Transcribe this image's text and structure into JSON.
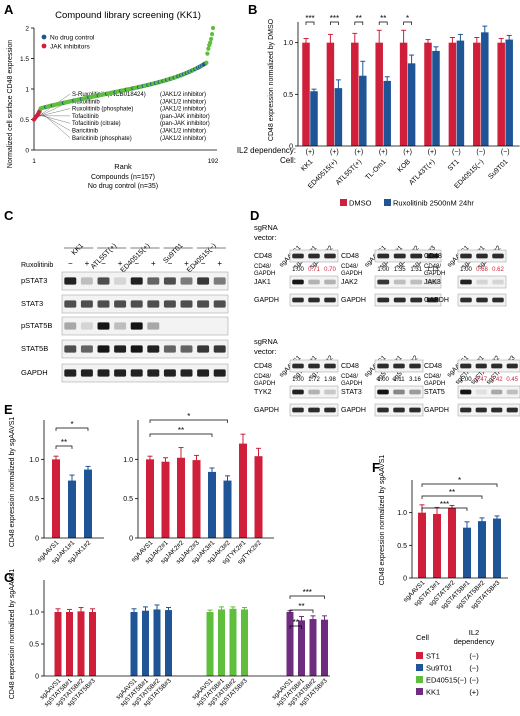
{
  "panels": {
    "A": "A",
    "B": "B",
    "C": "C",
    "D": "D",
    "E": "E",
    "F": "F",
    "G": "G"
  },
  "colors": {
    "red": "#cf1f3a",
    "blue": "#1f5596",
    "green": "#5fbf3c",
    "purple": "#6f2d7f",
    "dmso": "#cf1f3a",
    "ruxo": "#1f5596",
    "blot_dark": "#111111"
  },
  "panelA": {
    "title": "Compound library screening (KK1)",
    "ylabel": "Normalized cell surface CD48 expression",
    "xlabel": "Rank",
    "footnote1": "Compounds (n=157)",
    "footnote2": "No drug control (n=35)",
    "legend": [
      {
        "label": "No drug control",
        "color": "#1f5596"
      },
      {
        "label": "JAK inhibitors",
        "color": "#cf1f3a"
      }
    ],
    "annotations": [
      {
        "name": "S-Ruxolitinib (INCB018424)",
        "target": "(JAK1/2 inhibitor)"
      },
      {
        "name": "Ruxolitinib",
        "target": "(JAK1/2 inhibitor)"
      },
      {
        "name": "Ruxolitinib (phosphate)",
        "target": "(JAK1/2 inhibitor)"
      },
      {
        "name": "Tofacitinib",
        "target": "(pan-JAK inhibitor)"
      },
      {
        "name": "Tofacitinib (citrate)",
        "target": "(pan-JAK inhibitor)"
      },
      {
        "name": "Baricitinib",
        "target": "(JAK1/2 inhibitor)"
      },
      {
        "name": "Baricitinib (phosphate)",
        "target": "(JAK1/2 inhibitor)"
      }
    ],
    "xtick_start": "1",
    "xtick_end": "192"
  },
  "panelB": {
    "ylabel": "CD48 expression normalized by DMSO",
    "il2_label": "IL2 dependency:",
    "cell_label": "Cell:",
    "legend": [
      {
        "label": "DMSO",
        "color": "#cf1f3a"
      },
      {
        "label": "Ruxolitinib 2500nM 24hr",
        "color": "#1f5596"
      }
    ]
  },
  "panelC": {
    "drug_label": "Ruxolitinib",
    "cells": [
      "KK1",
      "ATL55T(+)",
      "ED40515(+)",
      "Su9T01",
      "ED40515(−)"
    ],
    "signs": [
      "−",
      "+",
      "−",
      "+",
      "−",
      "+",
      "−",
      "+",
      "−",
      "+"
    ],
    "rows": [
      "pSTAT3",
      "STAT3",
      "pSTAT5B",
      "STAT5B",
      "GAPDH"
    ]
  },
  "panelD": {
    "vector_label1": "sgRNA",
    "vector_label2": "vector:",
    "ratio_label1": "CD48/",
    "ratio_label2": "GAPDH",
    "blocks": [
      {
        "lanes": [
          "sgAAVS1",
          "sgJAK1#1",
          "sgJAK1#2"
        ],
        "ratios": [
          "1.00",
          "0.71",
          "0.70"
        ],
        "target": "JAK1"
      },
      {
        "lanes": [
          "sgAAVS1",
          "sgJAK2#1",
          "sgJAK2#2",
          "sgJAK2#3"
        ],
        "ratios": [
          "1.00",
          "1.35",
          "1.31",
          "1.13"
        ],
        "target": "JAK2"
      },
      {
        "lanes": [
          "sgAAVS1",
          "sgJAK3#1",
          "sgJAK3#2"
        ],
        "ratios": [
          "1.00",
          "0.68",
          "0.62"
        ],
        "target": "JAK3"
      },
      {
        "lanes": [
          "sgAAVS1",
          "sgTYK2#1",
          "sgTYK2#2"
        ],
        "ratios": [
          "1.00",
          "1.72",
          "1.98"
        ],
        "target": "TYK2"
      },
      {
        "lanes": [
          "sgAAVS1",
          "sgSTAT3#1",
          "sgSTAT3#2"
        ],
        "ratios": [
          "1.00",
          "2.11",
          "3.16"
        ],
        "target": "STAT3"
      },
      {
        "lanes": [
          "sgAAVS1",
          "sgSTAT5B#1",
          "sgSTAT5B#2",
          "sgSTAT5B#3"
        ],
        "ratios": [
          "1.00",
          "0.47",
          "0.42",
          "0.45"
        ],
        "target": "STAT5"
      }
    ],
    "rows": [
      "CD48",
      "GAPDH"
    ]
  },
  "panelE": {
    "ylabel": "CD48 expression normalized by sgAAVS1"
  },
  "panelF": {
    "ylabel": "CD48 expression normalized by sgAAVS1"
  },
  "panelG": {
    "ylabel": "CD48 expression normalized by sgAAVS1",
    "legend_title_cell": "Cell",
    "legend_title_il2a": "IL2",
    "legend_title_il2b": "dependency",
    "legend": [
      {
        "label": "ST1",
        "dep": "(−)",
        "color": "#cf1f3a"
      },
      {
        "label": "Su9T01",
        "dep": "(−)",
        "color": "#1f5596"
      },
      {
        "label": "ED40515(−)",
        "dep": "(−)",
        "color": "#5fbf3c"
      },
      {
        "label": "KK1",
        "dep": "(+)",
        "color": "#6f2d7f"
      }
    ]
  },
  "chart_data": [
    {
      "panel": "A",
      "type": "scatter",
      "title": "Compound library screening (KK1)",
      "xlabel": "Rank",
      "ylabel": "Normalized cell surface CD48 expression",
      "xlim": [
        1,
        192
      ],
      "ylim": [
        0,
        2.0
      ],
      "yticks": [
        0,
        0.5,
        1,
        1.5,
        2
      ],
      "jak_inhibitor_values": [
        0.5,
        0.52,
        0.54,
        0.56,
        0.58,
        0.61,
        0.64
      ],
      "tail_values": [
        1.58,
        1.66,
        1.72,
        1.76,
        1.82,
        1.9,
        2.0
      ],
      "legend_position": "top-left"
    },
    {
      "panel": "B",
      "type": "bar",
      "ylabel": "CD48 expression normalized by DMSO",
      "ylim": [
        0,
        1.2
      ],
      "yticks": [
        0,
        0.5,
        1
      ],
      "categories": [
        "KK1",
        "ED40515(+)",
        "ATL55T(+)",
        "TL-Om1",
        "KOB",
        "ATL43T(+)",
        "ST1",
        "ED40515(−)",
        "Su9T01"
      ],
      "il2_dependency": [
        "(+)",
        "(+)",
        "(+)",
        "(+)",
        "(+)",
        "(+)",
        "(−)",
        "(−)",
        "(−)"
      ],
      "series": [
        {
          "name": "DMSO",
          "values": [
            1.0,
            1.0,
            1.0,
            1.0,
            1.0,
            1.0,
            1.0,
            1.0,
            1.0
          ],
          "errors": [
            0.04,
            0.08,
            0.09,
            0.12,
            0.12,
            0.03,
            0.05,
            0.05,
            0.04
          ]
        },
        {
          "name": "Ruxolitinib 2500nM 24hr",
          "values": [
            0.53,
            0.56,
            0.68,
            0.63,
            0.8,
            0.92,
            1.02,
            1.1,
            1.03
          ],
          "errors": [
            0.02,
            0.08,
            0.14,
            0.04,
            0.08,
            0.04,
            0.06,
            0.06,
            0.04
          ]
        }
      ],
      "significance": [
        {
          "index": 0,
          "label": "***"
        },
        {
          "index": 1,
          "label": "***"
        },
        {
          "index": 2,
          "label": "**"
        },
        {
          "index": 3,
          "label": "**"
        },
        {
          "index": 4,
          "label": "*"
        }
      ],
      "legend_position": "bottom"
    },
    {
      "panel": "E-left",
      "type": "bar",
      "ylabel": "CD48 expression normalized by sgAAVS1",
      "ylim": [
        0,
        1.5
      ],
      "yticks": [
        0,
        0.5,
        1.0
      ],
      "categories": [
        "sgAAVS1",
        "sgJAK1#1",
        "sgJAK1#2"
      ],
      "values": [
        1.0,
        0.73,
        0.87
      ],
      "errors": [
        0.04,
        0.07,
        0.04
      ],
      "colors": [
        "#cf1f3a",
        "#1f5596",
        "#1f5596"
      ],
      "significance": [
        {
          "from": 0,
          "to": 1,
          "label": "**"
        },
        {
          "from": 0,
          "to": 2,
          "label": "*"
        }
      ]
    },
    {
      "panel": "E-right",
      "type": "bar",
      "ylim": [
        0,
        1.5
      ],
      "yticks": [
        0,
        0.5,
        1.0
      ],
      "categories": [
        "sgAAVS1",
        "sgJAK2#1",
        "sgJAK2#2",
        "sgJAK2#3",
        "sgJAK3#1",
        "sgJAK3#2",
        "sgTYK2#1",
        "sgTYK2#2"
      ],
      "values": [
        1.0,
        0.97,
        1.02,
        0.99,
        0.84,
        0.73,
        1.2,
        1.04
      ],
      "errors": [
        0.04,
        0.05,
        0.13,
        0.06,
        0.05,
        0.06,
        0.12,
        0.1
      ],
      "colors": [
        "#cf1f3a",
        "#cf1f3a",
        "#cf1f3a",
        "#cf1f3a",
        "#1f5596",
        "#1f5596",
        "#cf1f3a",
        "#cf1f3a"
      ],
      "significance": [
        {
          "from": 0,
          "to": 4,
          "label": "**"
        },
        {
          "from": 0,
          "to": 5,
          "label": "*"
        }
      ]
    },
    {
      "panel": "F",
      "type": "bar",
      "ylabel": "CD48 expression normalized by sgAAVS1",
      "ylim": [
        0,
        1.5
      ],
      "yticks": [
        0,
        0.5,
        1.0
      ],
      "categories": [
        "sgAAVS1",
        "sgSTAT3#1",
        "sgSTAT3#2",
        "sgSTAT5B#1",
        "sgSTAT5B#2",
        "sgSTAT5B#3"
      ],
      "values": [
        1.0,
        0.98,
        1.07,
        0.77,
        0.87,
        0.91
      ],
      "errors": [
        0.12,
        0.1,
        0.04,
        0.09,
        0.05,
        0.04
      ],
      "colors": [
        "#cf1f3a",
        "#cf1f3a",
        "#cf1f3a",
        "#1f5596",
        "#1f5596",
        "#1f5596"
      ],
      "significance": [
        {
          "from": 0,
          "to": 3,
          "label": "***"
        },
        {
          "from": 0,
          "to": 4,
          "label": "**"
        },
        {
          "from": 0,
          "to": 5,
          "label": "*"
        }
      ]
    },
    {
      "panel": "G",
      "type": "bar",
      "ylabel": "CD48 expression normalized by sgAAVS1",
      "ylim": [
        0,
        1.5
      ],
      "yticks": [
        0,
        0.5,
        1.0
      ],
      "groups": [
        {
          "cell": "ST1",
          "color": "#cf1f3a",
          "categories": [
            "sgAAVS1",
            "sgSTAT5B#1",
            "sgSTAT5B#2",
            "sgSTAT5B#3"
          ],
          "values": [
            1.0,
            1.0,
            1.01,
            1.0
          ],
          "errors": [
            0.05,
            0.04,
            0.06,
            0.05
          ]
        },
        {
          "cell": "Su9T01",
          "color": "#1f5596",
          "categories": [
            "sgAAVS1",
            "sgSTAT5B#1",
            "sgSTAT5B#2",
            "sgSTAT5B#3"
          ],
          "values": [
            1.0,
            1.02,
            1.04,
            1.03
          ],
          "errors": [
            0.05,
            0.06,
            0.07,
            0.04
          ]
        },
        {
          "cell": "ED40515(−)",
          "color": "#5fbf3c",
          "categories": [
            "sgAAVS1",
            "sgSTAT5B#1",
            "sgSTAT5B#2",
            "sgSTAT5B#3"
          ],
          "values": [
            1.0,
            1.04,
            1.05,
            1.04
          ],
          "errors": [
            0.03,
            0.04,
            0.03,
            0.03
          ]
        },
        {
          "cell": "KK1",
          "color": "#6f2d7f",
          "categories": [
            "sgAAVS1",
            "sgSTAT5B#1",
            "sgSTAT5B#2",
            "sgSTAT5B#3"
          ],
          "values": [
            1.0,
            0.87,
            0.89,
            0.88
          ],
          "errors": [
            0.02,
            0.06,
            0.05,
            0.06
          ]
        }
      ],
      "significance": [
        {
          "group": 3,
          "from": 0,
          "to": 1,
          "label": "**"
        },
        {
          "group": 3,
          "from": 0,
          "to": 2,
          "label": "**"
        },
        {
          "group": 3,
          "from": 0,
          "to": 3,
          "label": "***"
        }
      ],
      "legend_position": "right"
    }
  ]
}
